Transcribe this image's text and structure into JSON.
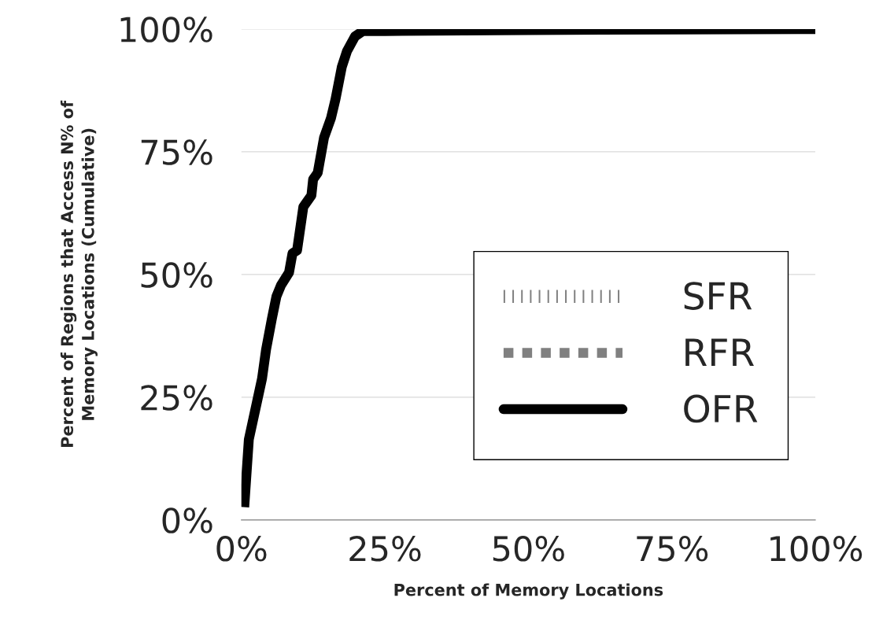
{
  "chart_data": {
    "type": "line",
    "xlabel": "Percent of Memory Locations",
    "ylabel": "Percent of Regions that Access N% of\nMemory Locations (Cumulative)",
    "x": [
      0.5,
      1.3,
      3.6,
      4.3,
      5.3,
      6.1,
      6.9,
      8.3,
      8.9,
      9.7,
      10.8,
      12.2,
      12.5,
      13.3,
      14.4,
      15.6,
      16.4,
      17.5,
      18.4,
      19.8,
      21.2,
      25,
      50,
      75,
      100
    ],
    "series": [
      {
        "name": "SFR",
        "color": "#808080",
        "line_style": "dotted",
        "values": [
          null,
          null,
          null,
          null,
          null,
          null,
          null,
          null,
          null,
          null,
          null,
          null,
          null,
          null,
          null,
          null,
          null,
          null,
          null,
          null,
          null,
          null,
          null,
          null,
          null
        ]
      },
      {
        "name": "RFR",
        "color": "#808080",
        "line_style": "dashed",
        "values": [
          null,
          null,
          null,
          null,
          null,
          null,
          null,
          null,
          null,
          null,
          null,
          null,
          null,
          null,
          null,
          null,
          null,
          null,
          null,
          null,
          null,
          null,
          null,
          null,
          null
        ]
      },
      {
        "name": "OFR",
        "color": "#000000",
        "line_style": "solid",
        "values": [
          2.6,
          16.4,
          28.8,
          34.7,
          40.9,
          45.5,
          47.8,
          50.4,
          54.3,
          54.9,
          63.8,
          66.1,
          69.4,
          70.7,
          77.9,
          81.8,
          85.7,
          92.3,
          95.5,
          98.5,
          99.6,
          99.6,
          99.8,
          99.9,
          100
        ]
      }
    ],
    "xlim": [
      0,
      100
    ],
    "xticks": [
      {
        "value": 0,
        "label": "0%"
      },
      {
        "value": 25,
        "label": "25%"
      },
      {
        "value": 50,
        "label": "50%"
      },
      {
        "value": 75,
        "label": "75%"
      },
      {
        "value": 100,
        "label": "100%"
      }
    ],
    "ylim": [
      0,
      100
    ],
    "yticks": [
      {
        "value": 0,
        "label": "0%"
      },
      {
        "value": 25,
        "label": "25%"
      },
      {
        "value": 50,
        "label": "50%"
      },
      {
        "value": 75,
        "label": "75%"
      },
      {
        "value": 100,
        "label": "100%"
      }
    ],
    "grid": "y",
    "legend": "bottom right"
  }
}
